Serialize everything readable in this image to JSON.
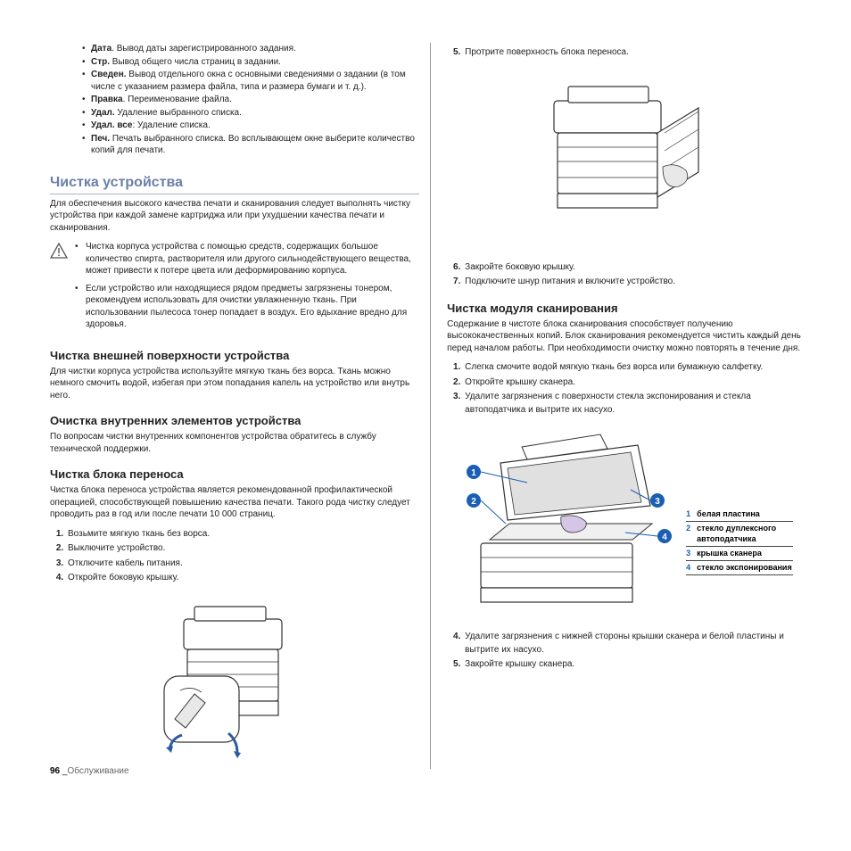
{
  "topBullets": [
    {
      "term": "Дата",
      "desc": ". Вывод даты зарегистрированного задания."
    },
    {
      "term": "Стр.",
      "desc": " Вывод общего числа страниц в задании."
    },
    {
      "term": "Сведен.",
      "desc": " Вывод отдельного окна с основными сведениями о задании (в том числе с указанием размера файла, типа и размера бумаги и т. д.)."
    },
    {
      "term": "Правка",
      "desc": ". Переименование файла."
    },
    {
      "term": "Удал.",
      "desc": " Удаление выбранного списка."
    },
    {
      "term": "Удал. все",
      "desc": ": Удаление списка."
    },
    {
      "term": "Печ.",
      "desc": " Печать выбранного списка. Во всплывающем окне выберите количество копий для печати."
    }
  ],
  "h2_cleaning": "Чистка устройства",
  "p_cleaning_intro": "Для обеспечения высокого качества печати и сканирования следует выполнять чистку устройства при каждой замене картриджа или при ухудшении качества печати и сканирования.",
  "warn_items": [
    "Чистка корпуса устройства с помощью средств, содержащих большое количество спирта, растворителя или другого сильнодействующего вещества, может привести к потере цвета или деформированию корпуса.",
    "Если устройство или находящиеся рядом предметы загрязнены тонером, рекомендуем использовать для очистки увлажненную ткань. При использовании пылесоса тонер попадает в воздух. Его вдыхание вредно для здоровья."
  ],
  "h3_exterior": "Чистка внешней поверхности устройства",
  "p_exterior": "Для чистки корпуса устройства используйте мягкую ткань без ворса. Ткань можно немного смочить водой, избегая при этом попадания капель на устройство или внутрь него.",
  "h3_interior": "Очистка внутренних элементов устройства",
  "p_interior": "По вопросам чистки внутренних компонентов устройства обратитесь в службу технической поддержки.",
  "h3_transfer": "Чистка блока переноса",
  "p_transfer": "Чистка блока переноса устройства является рекомендованной профилактической операцией, способствующей повышению качества печати. Такого рода чистку следует проводить раз в год или после печати 10 000 страниц.",
  "steps_transfer": [
    "Возьмите мягкую ткань без ворса.",
    "Выключите устройство.",
    "Отключите кабель питания.",
    "Откройте боковую крышку."
  ],
  "step5_right": "Протрите поверхность блока переноса.",
  "step67_right": [
    "Закройте боковую крышку.",
    "Подключите шнур питания и включите устройство."
  ],
  "h3_scanner": "Чистка модуля сканирования",
  "p_scanner": "Содержание в чистоте блока сканирования способствует получению высококачественных копий. Блок сканирования рекомендуется чистить каждый день перед началом работы. При необходимости очистку можно повторять в течение дня.",
  "steps_scanner_1_3": [
    "Слегка смочите водой мягкую ткань без ворса или бумажную салфетку.",
    "Откройте крышку сканера.",
    "Удалите загрязнения с поверхности стекла экспонирования и стекла автоподатчика и вытрите их насухо."
  ],
  "legend_items": [
    {
      "n": "1",
      "t": "белая пластина",
      "color": "#1a5fb4"
    },
    {
      "n": "2",
      "t": "стекло дуплексного автоподатчика",
      "color": "#1a5fb4"
    },
    {
      "n": "3",
      "t": "крышка сканера",
      "color": "#1a5fb4"
    },
    {
      "n": "4",
      "t": "стекло экспонирования",
      "color": "#1a5fb4"
    }
  ],
  "steps_scanner_4_5": [
    "Удалите загрязнения с нижней стороны крышки сканера и белой пластины и вытрите их насухо.",
    "Закройте крышку сканера."
  ],
  "footer_page": "96",
  "footer_sep": "_",
  "footer_text": "Обслуживание",
  "colors": {
    "heading": "#6b7fa8",
    "callout": "#1a5fb4"
  }
}
